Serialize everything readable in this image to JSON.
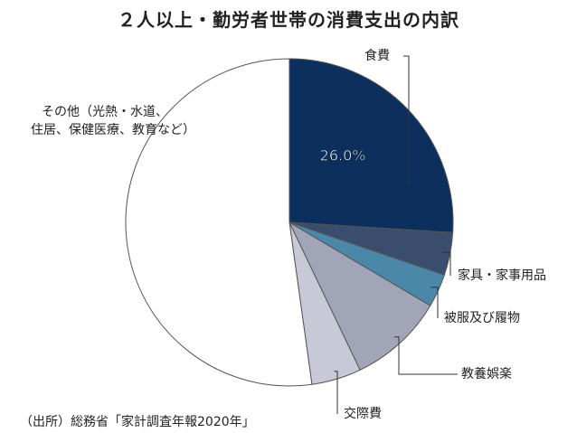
{
  "chart_data": {
    "type": "pie",
    "title": "２人以上・勤労者世帯の消費支出の内訳",
    "start_angle_deg": 0,
    "direction": "clockwise",
    "slices": [
      {
        "label": "食費",
        "value": 26.0,
        "value_label": "26.0%",
        "color": "#0d2f5e"
      },
      {
        "label": "家具・家事用品",
        "value": 4.2,
        "color": "#3b4d6c"
      },
      {
        "label": "被服及び履物",
        "value": 3.3,
        "color": "#4a87a8"
      },
      {
        "label": "教養娯楽",
        "value": 9.4,
        "color": "#a2a5b8"
      },
      {
        "label": "交際費",
        "value": 4.9,
        "color": "#c7c9d7"
      },
      {
        "label": "その他（光熱・水道、住居、保健医療、教育など）",
        "value": 52.2,
        "color": "#ffffff",
        "label_lines": [
          "その他（光熱・水道、",
          "住居、保健医療、教育など）"
        ]
      }
    ],
    "source": "（出所）総務省「家計調査年報2020年」"
  }
}
